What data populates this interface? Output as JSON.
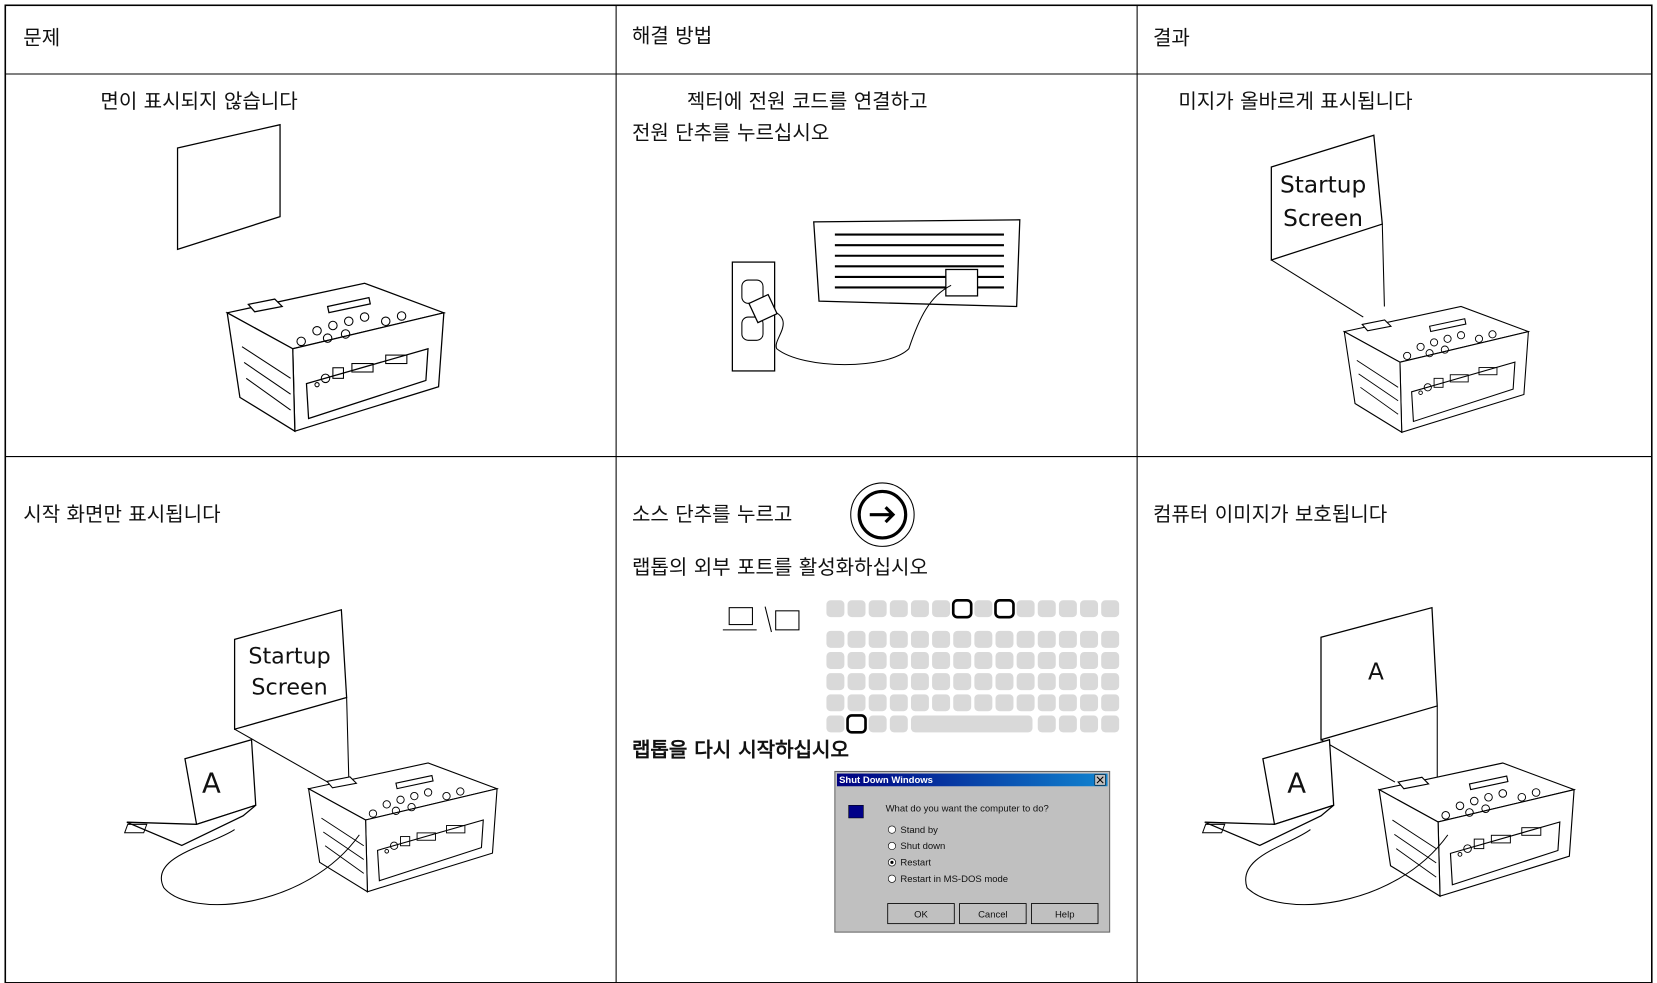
{
  "table": {
    "header": [
      "문제",
      "해결 방법",
      "결과"
    ],
    "rows": [
      {
        "problem": "면이 표시되지 않습니다",
        "solution": [
          "젝터에 전원 코드를 연결하고",
          "전원 단추를 누르십시오"
        ],
        "result": "미지가 올바르게 표시됩니다",
        "result_screen": [
          "Startup",
          "Screen"
        ]
      },
      {
        "problem": "시작 화면만 표시됩니다",
        "problem_screen": [
          "Startup",
          "Screen"
        ],
        "problem_laptop": "A",
        "solution": {
          "step1": "소스 단추를 누르고",
          "step2": "랩톱의 외부 포트를 활성화하십시오",
          "step3": "랩톱을 다시 시작하십시오",
          "dialog": {
            "title": "Shut Down Windows",
            "question": "What do you want the computer to do?",
            "options": [
              "Stand by",
              "Shut down",
              "Restart",
              "Restart in MS-DOS mode"
            ],
            "buttons": [
              "OK",
              "Cancel",
              "Help"
            ]
          }
        },
        "result": "컴퓨터 이미지가 보호됩니다",
        "result_screen": "A",
        "result_laptop": "A"
      }
    ]
  }
}
